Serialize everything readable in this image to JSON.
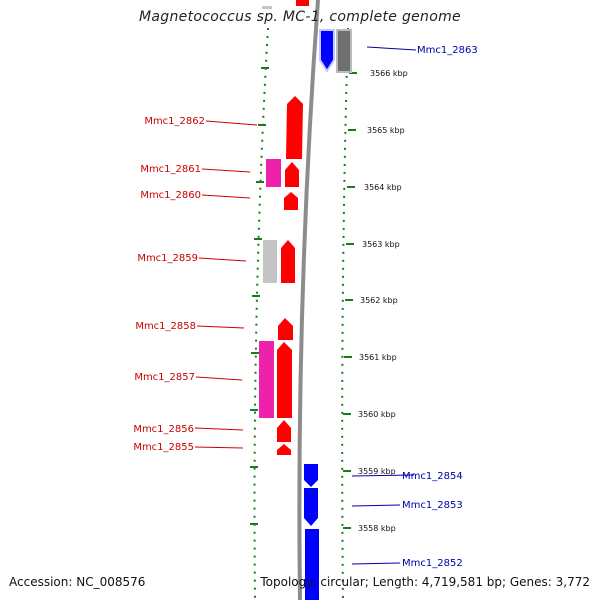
{
  "title": "Magnetococcus sp. MC-1, complete genome",
  "footer": {
    "accession": "Accession: NC_008576",
    "topology": "Topology: circular; Length: 4,719,581 bp; Genes: 3,772"
  },
  "colors": {
    "forward_gene": "#ff0000",
    "forward_alt": "#ee22aa",
    "reverse_gene": "#0000ff",
    "forward_label": "#cc0000",
    "reverse_label": "#0000aa",
    "tick_mark": "#1a7a1a"
  },
  "scale_ticks": [
    {
      "kbp": 3566,
      "label": "3566 kbp"
    },
    {
      "kbp": 3565,
      "label": "3565 kbp"
    },
    {
      "kbp": 3564,
      "label": "3564 kbp"
    },
    {
      "kbp": 3563,
      "label": "3563 kbp"
    },
    {
      "kbp": 3562,
      "label": "3562 kbp"
    },
    {
      "kbp": 3561,
      "label": "3561 kbp"
    },
    {
      "kbp": 3560,
      "label": "3560 kbp"
    },
    {
      "kbp": 3559,
      "label": "3559 kbp"
    },
    {
      "kbp": 3558,
      "label": "3558 kbp"
    }
  ],
  "gene_labels": [
    {
      "id": "Mmc1_2863",
      "strand": "reverse"
    },
    {
      "id": "Mmc1_2862",
      "strand": "forward"
    },
    {
      "id": "Mmc1_2861",
      "strand": "forward"
    },
    {
      "id": "Mmc1_2860",
      "strand": "forward"
    },
    {
      "id": "Mmc1_2859",
      "strand": "forward"
    },
    {
      "id": "Mmc1_2858",
      "strand": "forward"
    },
    {
      "id": "Mmc1_2857",
      "strand": "forward"
    },
    {
      "id": "Mmc1_2856",
      "strand": "forward"
    },
    {
      "id": "Mmc1_2855",
      "strand": "forward"
    },
    {
      "id": "Mmc1_2854",
      "strand": "reverse"
    },
    {
      "id": "Mmc1_2853",
      "strand": "reverse"
    },
    {
      "id": "Mmc1_2852",
      "strand": "reverse"
    }
  ]
}
